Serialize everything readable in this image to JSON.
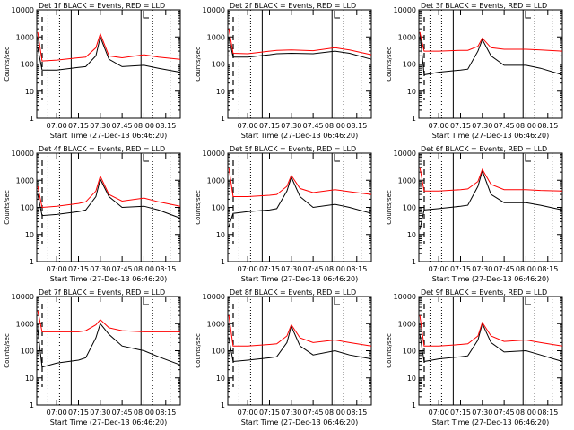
{
  "chart_data": {
    "type": "line",
    "layout": "3x3 grid of panels",
    "yscale": "log",
    "ylim": [
      1,
      10000
    ],
    "ylabel": "Counts/sec",
    "xlabel": "Start Time (27-Dec-13 06:46:20)",
    "xlim": [
      "06:46:20",
      "08:25:00"
    ],
    "x_ticks": [
      "07:00",
      "07:15",
      "07:30",
      "07:45",
      "08:00",
      "08:15"
    ],
    "y_ticks": [
      "1",
      "10",
      "100",
      "1000",
      "10000"
    ],
    "colors": {
      "events": "#000000",
      "lld": "#ff0000"
    },
    "vertical_markers": {
      "solid": [
        "07:10",
        "07:58"
      ],
      "dotted": [
        "06:54",
        "07:02",
        "08:06",
        "08:18"
      ]
    },
    "panels": [
      {
        "title": "Det 1f BLACK = Events, RED = LLD",
        "x": [
          "06:47",
          "06:50",
          "07:00",
          "07:15",
          "07:20",
          "07:27",
          "07:30",
          "07:36",
          "07:45",
          "08:00",
          "08:10",
          "08:25"
        ],
        "series": [
          {
            "color": "black",
            "values": [
              400,
              60,
              60,
              75,
              80,
              200,
              1000,
              150,
              80,
              90,
              70,
              50
            ]
          },
          {
            "color": "red",
            "values": [
              1500,
              130,
              140,
              170,
              180,
              400,
              1300,
              200,
              170,
              220,
              180,
              150
            ]
          }
        ]
      },
      {
        "title": "Det 2f BLACK = Events, RED = LLD",
        "x": [
          "06:47",
          "06:50",
          "07:00",
          "07:15",
          "07:20",
          "07:30",
          "07:45",
          "08:00",
          "08:10",
          "08:25"
        ],
        "series": [
          {
            "color": "black",
            "values": [
              1000,
              180,
              180,
              220,
              240,
              250,
              240,
              300,
              250,
              150
            ]
          },
          {
            "color": "red",
            "values": [
              2000,
              250,
              240,
              300,
              320,
              330,
              310,
              400,
              330,
              220
            ]
          }
        ]
      },
      {
        "title": "Det 3f BLACK = Events, RED = LLD",
        "x": [
          "06:47",
          "06:50",
          "07:00",
          "07:15",
          "07:20",
          "07:27",
          "07:30",
          "07:36",
          "07:45",
          "08:00",
          "08:10",
          "08:25"
        ],
        "series": [
          {
            "color": "black",
            "values": [
              1500,
              40,
              50,
              60,
              65,
              300,
              800,
              200,
              90,
              90,
              70,
              40
            ]
          },
          {
            "color": "red",
            "values": [
              1500,
              300,
              300,
              320,
              320,
              450,
              900,
              400,
              350,
              350,
              330,
              300
            ]
          }
        ]
      },
      {
        "title": "Det 4f BLACK = Events, RED = LLD",
        "x": [
          "06:47",
          "06:50",
          "07:00",
          "07:15",
          "07:20",
          "07:27",
          "07:30",
          "07:36",
          "07:45",
          "08:00",
          "08:10",
          "08:25"
        ],
        "series": [
          {
            "color": "black",
            "values": [
              300,
              50,
              55,
              70,
              80,
              250,
              1100,
              250,
              100,
              110,
              80,
              40
            ]
          },
          {
            "color": "red",
            "values": [
              600,
              100,
              110,
              140,
              160,
              400,
              1400,
              300,
              170,
              220,
              160,
              110
            ]
          }
        ]
      },
      {
        "title": "Det 5f BLACK = Events, RED = LLD",
        "x": [
          "06:47",
          "06:50",
          "07:00",
          "07:15",
          "07:20",
          "07:27",
          "07:30",
          "07:36",
          "07:45",
          "08:00",
          "08:10",
          "08:25"
        ],
        "series": [
          {
            "color": "black",
            "values": [
              20,
              60,
              70,
              80,
              90,
              400,
              1300,
              250,
              100,
              130,
              100,
              60
            ]
          },
          {
            "color": "red",
            "values": [
              3000,
              250,
              250,
              280,
              300,
              600,
              1500,
              500,
              350,
              450,
              380,
              300
            ]
          }
        ]
      },
      {
        "title": "Det 6f BLACK = Events, RED = LLD",
        "x": [
          "06:47",
          "06:50",
          "07:00",
          "07:15",
          "07:20",
          "07:27",
          "07:30",
          "07:36",
          "07:45",
          "08:00",
          "08:10",
          "08:25"
        ],
        "series": [
          {
            "color": "black",
            "values": [
              15,
              80,
              90,
              110,
              120,
              600,
              2200,
              300,
              150,
              150,
              120,
              80
            ]
          },
          {
            "color": "red",
            "values": [
              3000,
              400,
              400,
              450,
              480,
              900,
              2500,
              700,
              450,
              450,
              420,
              400
            ]
          }
        ]
      },
      {
        "title": "Det 7f BLACK = Events, RED = LLD",
        "x": [
          "06:47",
          "06:50",
          "07:00",
          "07:15",
          "07:20",
          "07:27",
          "07:30",
          "07:36",
          "07:45",
          "08:00",
          "08:10",
          "08:25"
        ],
        "series": [
          {
            "color": "black",
            "values": [
              600,
              25,
              35,
              45,
              55,
              300,
              1000,
              400,
              150,
              100,
              60,
              30
            ]
          },
          {
            "color": "red",
            "values": [
              3000,
              500,
              500,
              500,
              550,
              900,
              1400,
              700,
              550,
              500,
              500,
              500
            ]
          }
        ]
      },
      {
        "title": "Det 8f BLACK = Events, RED = LLD",
        "x": [
          "06:47",
          "06:50",
          "07:00",
          "07:15",
          "07:20",
          "07:27",
          "07:30",
          "07:36",
          "07:45",
          "08:00",
          "08:10",
          "08:25"
        ],
        "series": [
          {
            "color": "black",
            "values": [
              300,
              40,
              45,
              55,
              60,
              200,
              800,
              150,
              70,
              100,
              70,
              50
            ]
          },
          {
            "color": "red",
            "values": [
              2000,
              150,
              150,
              170,
              180,
              350,
              900,
              300,
              200,
              250,
              200,
              150
            ]
          }
        ]
      },
      {
        "title": "Det 9f BLACK = Events, RED = LLD",
        "x": [
          "06:47",
          "06:50",
          "07:00",
          "07:15",
          "07:20",
          "07:27",
          "07:30",
          "07:36",
          "07:45",
          "08:00",
          "08:10",
          "08:25"
        ],
        "series": [
          {
            "color": "black",
            "values": [
              400,
              40,
              50,
              60,
              65,
              250,
              1000,
              200,
              90,
              100,
              70,
              40
            ]
          },
          {
            "color": "red",
            "values": [
              2000,
              150,
              150,
              170,
              180,
              350,
              1100,
              350,
              220,
              250,
              200,
              150
            ]
          }
        ]
      }
    ]
  }
}
